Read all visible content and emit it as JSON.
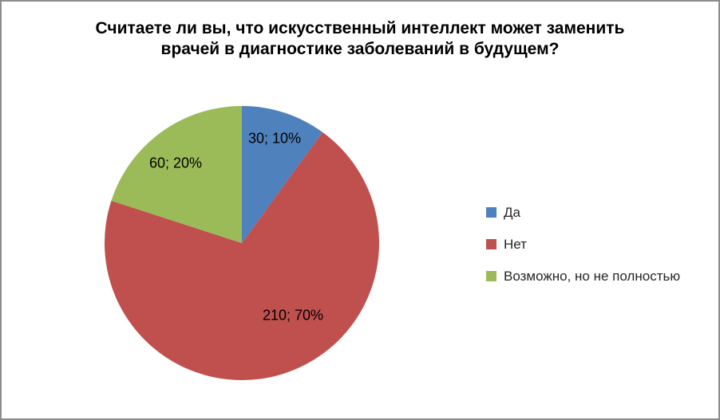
{
  "frame": {
    "border_color": "#8D8D8D",
    "background_color": "#FFFFFF"
  },
  "title_lines": [
    "Считаете ли вы, что искусственный интеллект может заменить",
    "врачей в диагностике заболеваний в будущем?"
  ],
  "chart_data": {
    "type": "pie",
    "title": "Считаете ли вы, что искусственный интеллект может заменить врачей в диагностике заболеваний в будущем?",
    "categories": [
      "Да",
      "Нет",
      "Возможно, но не полностью"
    ],
    "values": [
      30,
      210,
      60
    ],
    "percentages": [
      10,
      70,
      20
    ],
    "data_labels": [
      "30; 10%",
      "210; 70%",
      "60; 20%"
    ],
    "colors": [
      "#4F81BD",
      "#C0504D",
      "#9BBB59"
    ],
    "label_format": "value; percent",
    "legend_position": "right",
    "start_angle_deg": 0,
    "direction": "clockwise",
    "grid": false
  }
}
